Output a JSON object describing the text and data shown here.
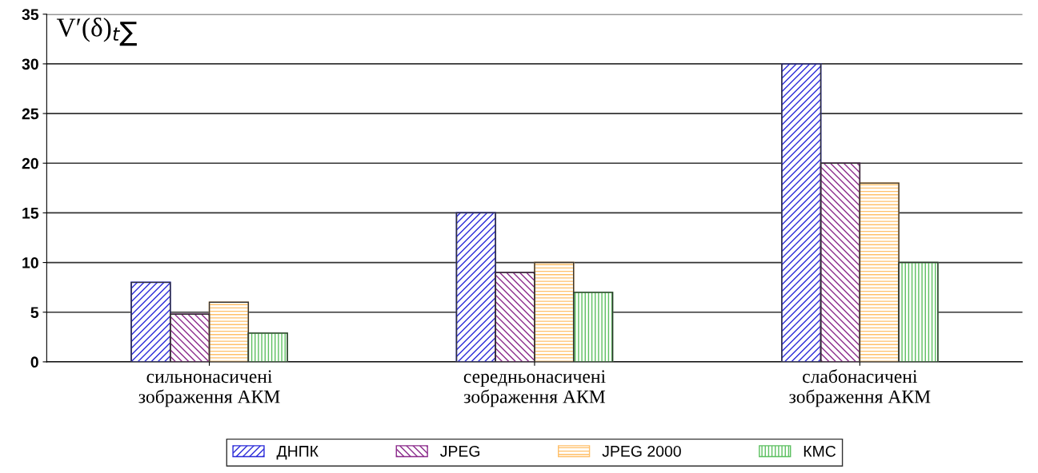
{
  "chart_data": {
    "type": "bar",
    "ylabel": "V′(δ)$_{t∑}$",
    "categories": [
      "сильнонасичені\nзображення АКМ",
      "середньонасичені\nзображення АКМ",
      "слабонасичені\nзображення АКМ"
    ],
    "series": [
      {
        "name": "ДНПК",
        "color": "#2b2bd9",
        "values": [
          8,
          15,
          30
        ]
      },
      {
        "name": "JPEG",
        "color": "#8b2a8b",
        "values": [
          4.8,
          9,
          20
        ]
      },
      {
        "name": "JPEG 2000",
        "color": "#ffc06a",
        "values": [
          6,
          10,
          18
        ]
      },
      {
        "name": "КМС",
        "color": "#5cc060",
        "values": [
          2.9,
          7,
          10
        ]
      }
    ],
    "ylim": [
      0,
      35
    ],
    "yticks": [
      0,
      5,
      10,
      15,
      20,
      25,
      30,
      35
    ],
    "grid": "y",
    "legend": "bottom"
  }
}
